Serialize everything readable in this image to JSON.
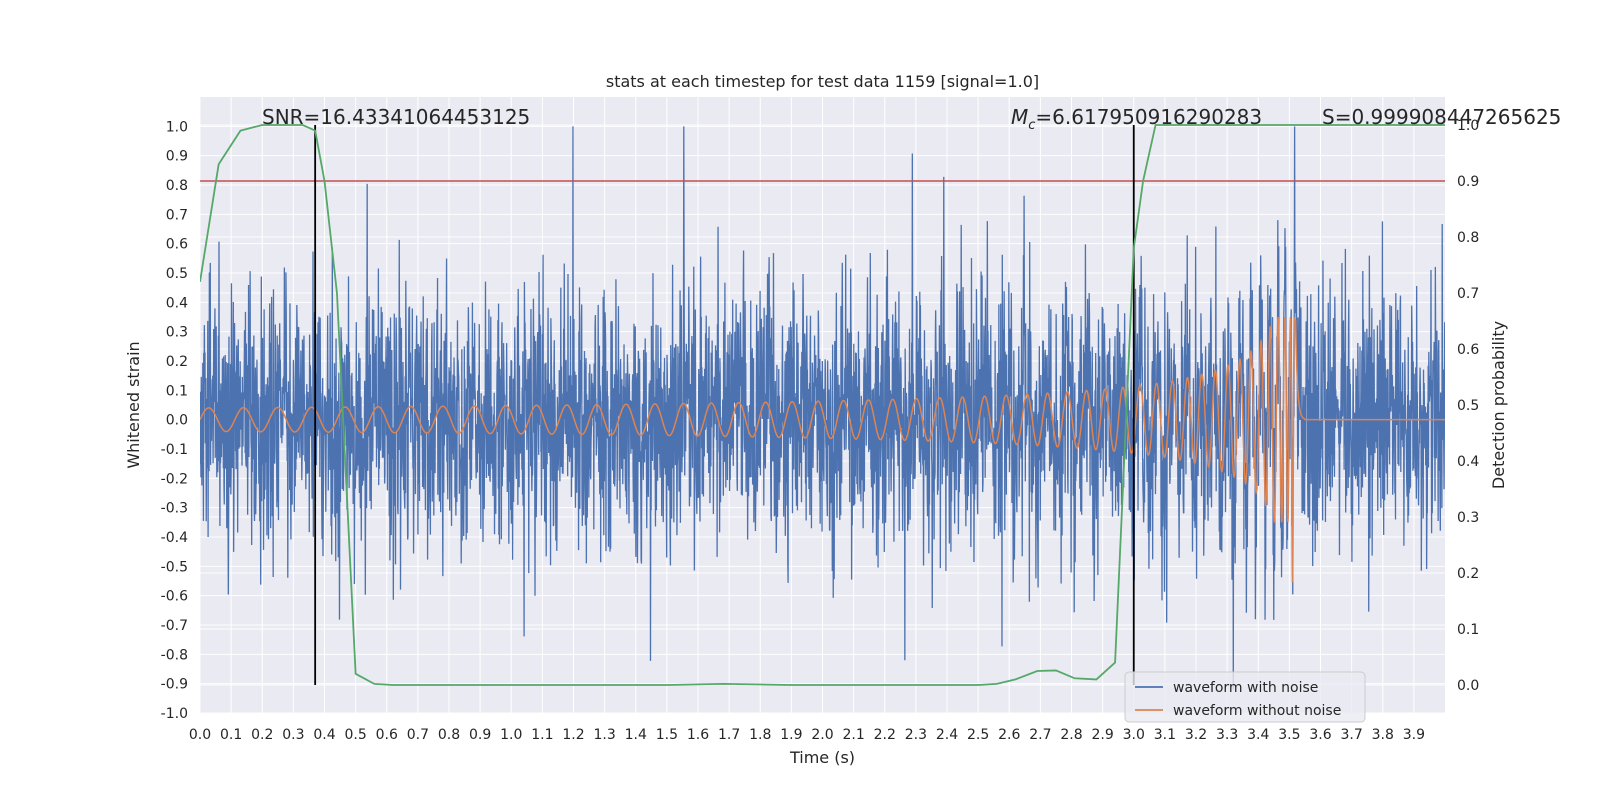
{
  "chart_data": {
    "type": "line",
    "title": "stats at each timestep for test data 1159 [signal=1.0]",
    "xlabel": "Time (s)",
    "ylabel": "Whitened strain",
    "y2label": "Detection probability",
    "xlim": [
      0.0,
      4.0
    ],
    "ylim": [
      -1.0,
      1.1
    ],
    "y2lim": [
      -0.05,
      1.05
    ],
    "grid": true,
    "legend_position": "lower right",
    "x_ticks": [
      "0.0",
      "0.1",
      "0.2",
      "0.3",
      "0.4",
      "0.5",
      "0.6",
      "0.7",
      "0.8",
      "0.9",
      "1.0",
      "1.1",
      "1.2",
      "1.3",
      "1.4",
      "1.5",
      "1.6",
      "1.7",
      "1.8",
      "1.9",
      "2.0",
      "2.1",
      "2.2",
      "2.3",
      "2.4",
      "2.5",
      "2.6",
      "2.7",
      "2.8",
      "2.9",
      "3.0",
      "3.1",
      "3.2",
      "3.3",
      "3.4",
      "3.5",
      "3.6",
      "3.7",
      "3.8",
      "3.9"
    ],
    "y_ticks": [
      "1.0",
      "0.9",
      "0.8",
      "0.7",
      "0.6",
      "0.5",
      "0.4",
      "0.3",
      "0.2",
      "0.1",
      "0.0",
      "-0.1",
      "-0.2",
      "-0.3",
      "-0.4",
      "-0.5",
      "-0.6",
      "-0.7",
      "-0.8",
      "-0.9",
      "-1.0"
    ],
    "y2_ticks": [
      "1.0",
      "0.9",
      "0.8",
      "0.7",
      "0.6",
      "0.5",
      "0.4",
      "0.3",
      "0.2",
      "0.1",
      "0.0"
    ],
    "annotations": {
      "snr": "SNR=16.43341064453125",
      "mc_symbol": "M",
      "mc_subscript": "c",
      "mc_value": "=6.617950916290283",
      "s": "S=0.999908447265625"
    },
    "vertical_lines_x": [
      0.37,
      3.0
    ],
    "threshold_line_y2": 0.9,
    "series": [
      {
        "name": "waveform with noise",
        "color": "#4c72b0",
        "style": "noise",
        "amplitude_envelope": 0.5,
        "peak_range": [
          -0.9,
          1.0
        ]
      },
      {
        "name": "waveform without noise",
        "color": "#dd8452",
        "style": "chirp",
        "t_merger": 3.52,
        "chirp_amplitude_start": 0.04,
        "chirp_amplitude_peak": 0.35,
        "chirp_amplitude_peak_negative": -0.6
      },
      {
        "name": "",
        "color": "#55a868",
        "axis": "right",
        "x": [
          0.0,
          0.06,
          0.13,
          0.2,
          0.27,
          0.33,
          0.37,
          0.4,
          0.44,
          0.5,
          0.56,
          0.62,
          0.7,
          0.9,
          1.1,
          1.3,
          1.5,
          1.68,
          1.9,
          2.1,
          2.3,
          2.5,
          2.56,
          2.62,
          2.69,
          2.75,
          2.81,
          2.88,
          2.94,
          3.0,
          3.03,
          3.07,
          3.2,
          3.4,
          3.6,
          3.8,
          4.0
        ],
        "y": [
          0.72,
          0.93,
          0.99,
          1.0,
          1.0,
          1.0,
          0.99,
          0.9,
          0.7,
          0.02,
          0.002,
          0.0,
          0.0,
          0.0,
          0.0,
          0.0,
          0.0,
          0.002,
          0.0,
          0.0,
          0.0,
          0.0,
          0.002,
          0.01,
          0.025,
          0.026,
          0.012,
          0.01,
          0.04,
          0.78,
          0.9,
          1.0,
          1.0,
          1.0,
          1.0,
          1.0,
          1.0
        ]
      }
    ],
    "threshold_color": "#c44e52",
    "vline_color": "#000000"
  }
}
